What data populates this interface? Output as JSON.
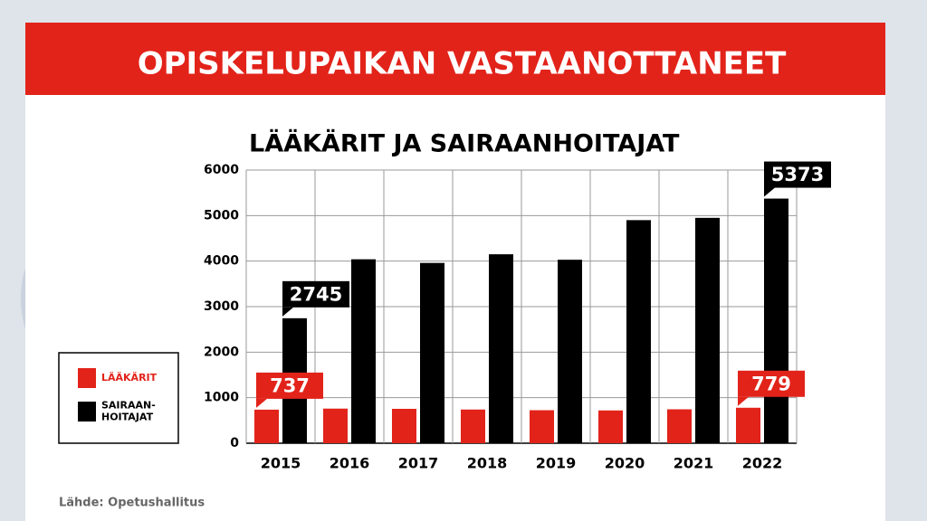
{
  "chart_data": {
    "type": "bar",
    "title": "OPISKELUPAIKAN VASTAANOTTANEET",
    "subtitle": "LÄÄKÄRIT JA SAIRAANHOITAJAT",
    "source": "Lähde: Opetushallitus",
    "categories": [
      "2015",
      "2016",
      "2017",
      "2018",
      "2019",
      "2020",
      "2021",
      "2022"
    ],
    "series": [
      {
        "name": "LÄÄKÄRIT",
        "color": "#e2231a",
        "values": [
          737,
          760,
          755,
          740,
          725,
          720,
          745,
          779
        ]
      },
      {
        "name": "SAIRAAN-\nHOITAJAT",
        "color": "#000000",
        "values": [
          2745,
          4040,
          3960,
          4150,
          4030,
          4900,
          4950,
          5373
        ]
      }
    ],
    "ylim": [
      0,
      6000
    ],
    "yticks": [
      0,
      1000,
      2000,
      3000,
      4000,
      5000,
      6000
    ],
    "grid": true
  }
}
